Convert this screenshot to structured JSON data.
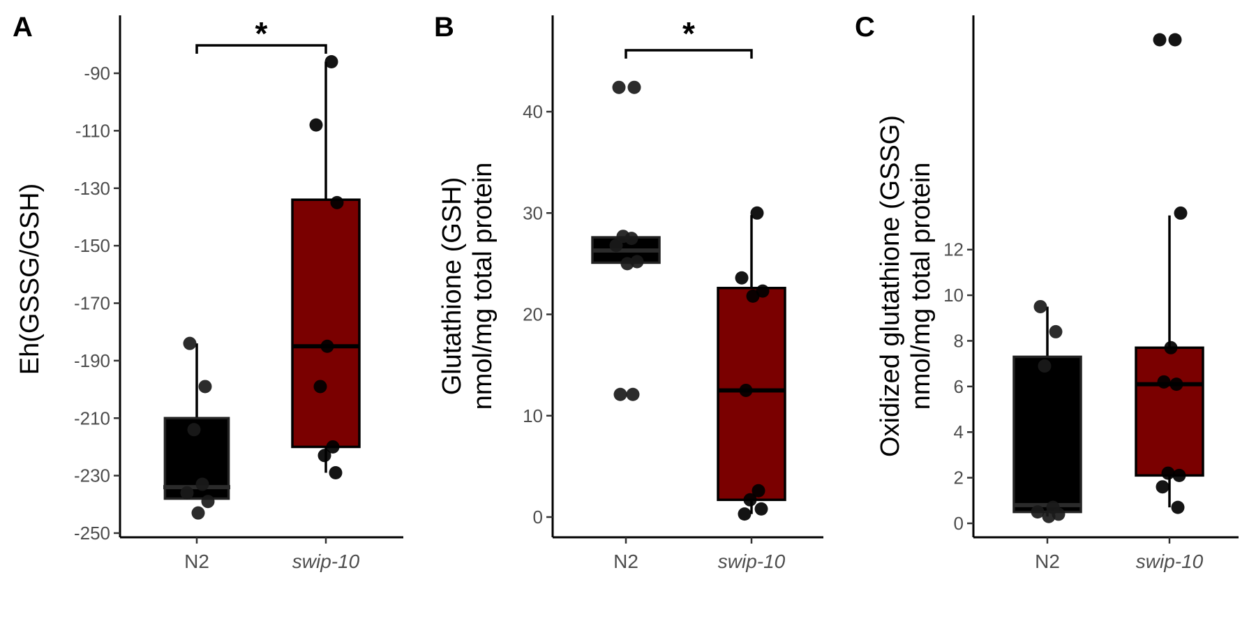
{
  "chart_data": [
    {
      "type": "box",
      "panel_label": "A",
      "ylabel_lines": [
        "Eh(GSSG/GSH)"
      ],
      "categories": [
        "N2",
        "swip-10"
      ],
      "category_italic": [
        false,
        true
      ],
      "category_fills": [
        "#000000",
        "#7a0000"
      ],
      "yticks": [
        -90,
        -110,
        -130,
        -150,
        -170,
        -190,
        -210,
        -230,
        -250
      ],
      "ylim": [
        -250,
        -90
      ],
      "boxes": [
        {
          "q1": -238,
          "median": -234,
          "q3": -210,
          "whisker_low": -238,
          "whisker_high": -184
        },
        {
          "q1": -220,
          "median": -185,
          "q3": -134,
          "whisker_low": -229,
          "whisker_high": -86
        }
      ],
      "points": [
        [
          -184,
          -199,
          -214,
          -233,
          -236,
          -239,
          -243
        ],
        [
          -86,
          -108,
          -135,
          -185,
          -199,
          -220,
          -223,
          -229
        ]
      ],
      "significance": {
        "label": "*",
        "between": [
          0,
          1
        ],
        "level": -81
      }
    },
    {
      "type": "box",
      "panel_label": "B",
      "ylabel_lines": [
        "Glutathione (GSH)",
        "nmol/mg total protein"
      ],
      "categories": [
        "N2",
        "swip-10"
      ],
      "category_italic": [
        false,
        true
      ],
      "category_fills": [
        "#000000",
        "#7a0000"
      ],
      "yticks": [
        0,
        10,
        20,
        30,
        40
      ],
      "ylim": [
        0,
        42
      ],
      "boxes": [
        {
          "q1": 25.1,
          "median": 26.3,
          "q3": 27.6,
          "whisker_low": 25.1,
          "whisker_high": 27.6
        },
        {
          "q1": 1.7,
          "median": 12.5,
          "q3": 22.6,
          "whisker_low": 0.3,
          "whisker_high": 29.8
        }
      ],
      "points": [
        [
          42.4,
          42.4,
          27.7,
          27.5,
          26.8,
          25.2,
          25.0,
          12.1,
          12.1
        ],
        [
          30.0,
          23.6,
          22.3,
          21.8,
          12.5,
          2.6,
          1.7,
          0.8,
          0.3
        ]
      ],
      "significance": {
        "label": "*",
        "between": [
          0,
          1
        ],
        "level": 44
      }
    },
    {
      "type": "box",
      "panel_label": "C",
      "ylabel_lines": [
        "Oxidized glutathione (GSSG)",
        "nmol/mg total protein"
      ],
      "categories": [
        "N2",
        "swip-10"
      ],
      "category_italic": [
        false,
        true
      ],
      "category_fills": [
        "#000000",
        "#7a0000"
      ],
      "yticks": [
        0,
        2,
        4,
        6,
        8,
        10,
        12
      ],
      "ylim": [
        0,
        21.2
      ],
      "boxes": [
        {
          "q1": 0.5,
          "median": 0.8,
          "q3": 7.3,
          "whisker_low": 0.3,
          "whisker_high": 9.5
        },
        {
          "q1": 2.1,
          "median": 6.1,
          "q3": 7.7,
          "whisker_low": 0.7,
          "whisker_high": 13.5
        }
      ],
      "points": [
        [
          9.5,
          8.4,
          6.9,
          0.7,
          0.5,
          0.4,
          0.3
        ],
        [
          21.2,
          21.2,
          13.6,
          7.7,
          6.2,
          6.1,
          2.2,
          2.1,
          1.6,
          0.7
        ]
      ],
      "significance": null
    }
  ]
}
